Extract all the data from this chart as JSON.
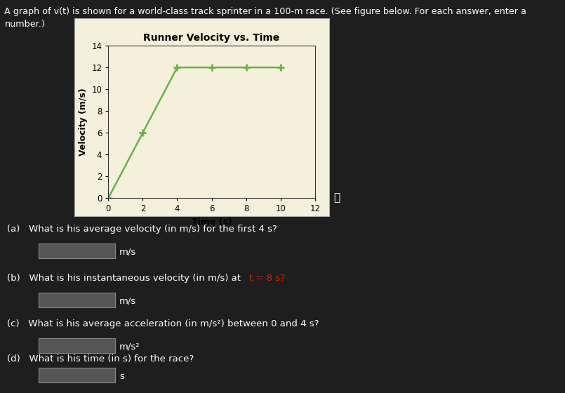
{
  "title": "Runner Velocity vs. Time",
  "xlabel": "Time (s)",
  "ylabel": "Velocity (m/s)",
  "x_data": [
    0,
    2,
    4,
    6,
    8,
    10
  ],
  "y_data": [
    0,
    6,
    12,
    12,
    12,
    12
  ],
  "xlim": [
    0,
    12
  ],
  "ylim": [
    0,
    14
  ],
  "xticks": [
    0,
    2,
    4,
    6,
    8,
    10,
    12
  ],
  "yticks": [
    0,
    2,
    4,
    6,
    8,
    10,
    12,
    14
  ],
  "line_color": "#6ab04c",
  "marker": "+",
  "marker_color": "#6ab04c",
  "plot_bg_color": "#f5f0dc",
  "outer_bg": "#1e1e1e",
  "title_color": "#000000",
  "axis_label_color": "#000000",
  "tick_label_color": "#000000",
  "header_text_line1": "A graph of v(t) is shown for a world-class track sprinter in a 100-m race. (See figure below. For each answer, enter a",
  "header_text_line2": "number.)",
  "q_a_text": "(a)   What is his average velocity (in m/s) for the first 4 s?",
  "q_b_prefix": "(b)   What is his instantaneous velocity (in m/s) at ",
  "q_b_highlight": "t = 8 s?",
  "q_c_text": "(c)   What is his average acceleration (in m/s²) between 0 and 4 s?",
  "q_d_text": "(d)   What is his time (in s) for the race?",
  "unit_a": "m/s",
  "unit_b": "m/s",
  "unit_c": "m/s²",
  "unit_d": "s",
  "highlight_color": "#cc2200",
  "text_color": "#ffffff",
  "box_color": "#555555",
  "box_edge_color": "#888888",
  "info_symbol": "ⓘ"
}
